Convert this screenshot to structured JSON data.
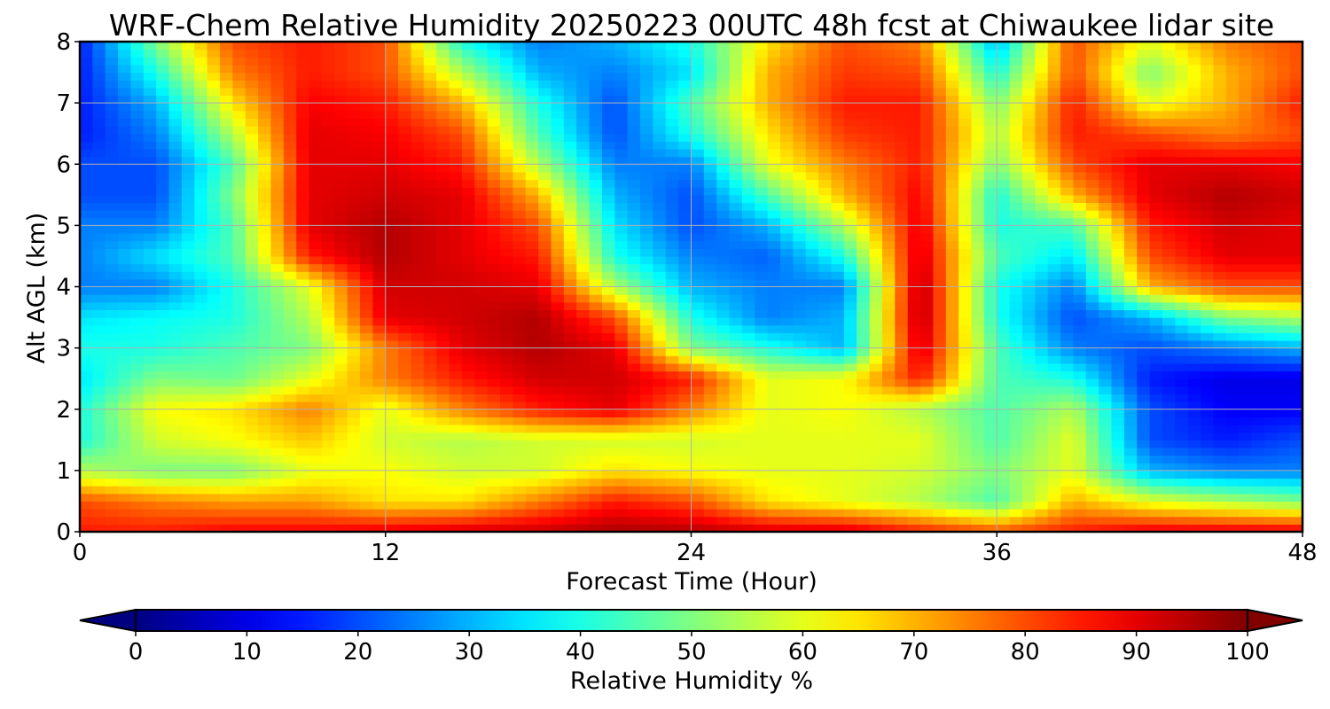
{
  "chart_data": {
    "type": "heatmap",
    "title": "WRF-Chem Relative Humidity 20250223 00UTC 48h fcst at Chiwaukee lidar site",
    "xlabel": "Forecast Time (Hour)",
    "ylabel": "Alt AGL (km)",
    "xlim": [
      0,
      48
    ],
    "ylim": [
      0,
      8
    ],
    "xticks": [
      0,
      12,
      24,
      36,
      48
    ],
    "yticks": [
      0,
      1,
      2,
      3,
      4,
      5,
      6,
      7,
      8
    ],
    "grid": true,
    "colormap": "jet",
    "colorbar": {
      "label": "Relative Humidity %",
      "range": [
        0,
        100
      ],
      "ticks": [
        0,
        10,
        20,
        30,
        40,
        50,
        60,
        70,
        80,
        90,
        100
      ],
      "extend": "both"
    },
    "x": [
      0,
      3,
      6,
      9,
      12,
      15,
      18,
      21,
      24,
      27,
      30,
      33,
      36,
      39,
      42,
      45,
      48
    ],
    "y": [
      0,
      0.5,
      1,
      1.5,
      2,
      2.5,
      3,
      3.5,
      4,
      4.5,
      5,
      5.5,
      6,
      6.5,
      7,
      7.5,
      8
    ],
    "z": [
      [
        85,
        85,
        88,
        88,
        90,
        92,
        93,
        96,
        95,
        92,
        92,
        85,
        80,
        85,
        90,
        90,
        90
      ],
      [
        80,
        75,
        72,
        72,
        65,
        65,
        75,
        85,
        80,
        65,
        60,
        55,
        45,
        70,
        60,
        55,
        50
      ],
      [
        55,
        50,
        50,
        60,
        62,
        58,
        58,
        65,
        62,
        60,
        60,
        58,
        50,
        60,
        30,
        25,
        25
      ],
      [
        40,
        58,
        62,
        68,
        58,
        55,
        58,
        58,
        58,
        60,
        60,
        60,
        45,
        60,
        20,
        15,
        20
      ],
      [
        40,
        62,
        65,
        75,
        60,
        75,
        85,
        90,
        75,
        60,
        62,
        55,
        45,
        55,
        20,
        12,
        12
      ],
      [
        35,
        50,
        48,
        60,
        75,
        85,
        92,
        92,
        85,
        60,
        62,
        85,
        45,
        40,
        15,
        10,
        10
      ],
      [
        40,
        40,
        45,
        50,
        75,
        90,
        95,
        90,
        50,
        40,
        30,
        92,
        45,
        25,
        20,
        25,
        30
      ],
      [
        35,
        38,
        40,
        55,
        90,
        92,
        95,
        80,
        40,
        25,
        30,
        95,
        40,
        20,
        30,
        50,
        55
      ],
      [
        25,
        25,
        40,
        60,
        92,
        92,
        90,
        55,
        30,
        25,
        25,
        95,
        40,
        25,
        70,
        80,
        80
      ],
      [
        25,
        35,
        45,
        85,
        95,
        90,
        85,
        40,
        25,
        22,
        40,
        92,
        45,
        35,
        80,
        90,
        90
      ],
      [
        25,
        25,
        45,
        90,
        95,
        90,
        80,
        35,
        20,
        30,
        55,
        90,
        40,
        45,
        85,
        92,
        90
      ],
      [
        20,
        20,
        50,
        90,
        92,
        90,
        70,
        30,
        20,
        45,
        70,
        88,
        40,
        70,
        90,
        95,
        92
      ],
      [
        20,
        20,
        45,
        90,
        90,
        85,
        55,
        25,
        25,
        60,
        75,
        85,
        50,
        80,
        90,
        90,
        88
      ],
      [
        15,
        25,
        55,
        90,
        88,
        80,
        45,
        20,
        40,
        65,
        82,
        85,
        55,
        85,
        80,
        75,
        80
      ],
      [
        15,
        30,
        65,
        88,
        85,
        70,
        40,
        20,
        45,
        70,
        85,
        85,
        50,
        85,
        60,
        70,
        85
      ],
      [
        15,
        40,
        75,
        85,
        80,
        55,
        30,
        25,
        35,
        70,
        82,
        80,
        40,
        80,
        50,
        70,
        80
      ],
      [
        15,
        50,
        80,
        85,
        80,
        40,
        25,
        30,
        40,
        65,
        80,
        75,
        30,
        80,
        60,
        75,
        80
      ]
    ]
  }
}
